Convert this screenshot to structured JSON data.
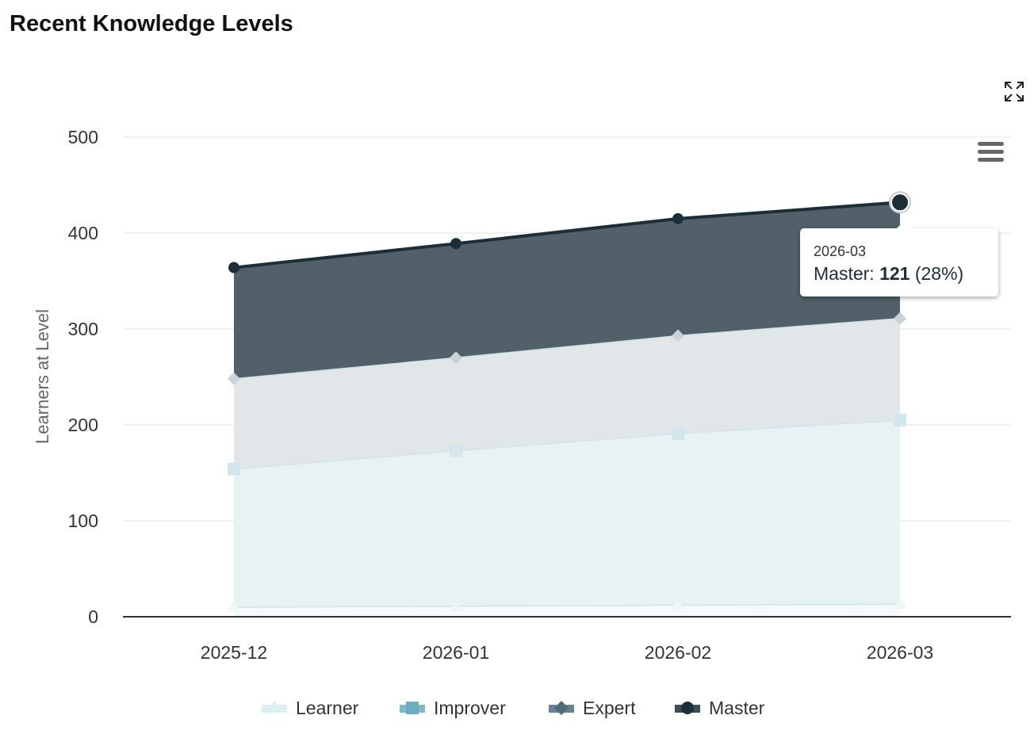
{
  "title": "Recent Knowledge Levels",
  "chart_data": {
    "type": "area",
    "stacked": true,
    "title": "Recent Knowledge Levels",
    "xlabel": "",
    "ylabel": "Learners at Level",
    "ylim": [
      0,
      500
    ],
    "yticks": [
      0,
      100,
      200,
      300,
      400,
      500
    ],
    "categories": [
      "2025-12",
      "2026-01",
      "2026-02",
      "2026-03"
    ],
    "series": [
      {
        "name": "Learner",
        "values": [
          10,
          11,
          12,
          13
        ],
        "color": "#dceff1",
        "fill": "#f5fbfc",
        "marker": "triangle"
      },
      {
        "name": "Improver",
        "values": [
          144,
          162,
          179,
          192
        ],
        "color": "#6aaebf",
        "fill": "#e8f1f4",
        "marker": "square"
      },
      {
        "name": "Expert",
        "values": [
          94,
          97,
          102,
          106
        ],
        "color": "#4d6b7a",
        "fill": "#e1e6e9",
        "marker": "diamond"
      },
      {
        "name": "Master",
        "values": [
          116,
          119,
          122,
          121
        ],
        "color": "#1c2e38",
        "fill": "#526069",
        "marker": "circle"
      }
    ],
    "grid": true,
    "legend": "bottom-center",
    "tooltip": {
      "category": "2026-03",
      "series": "Master",
      "value": "121",
      "percent": "(28%)"
    }
  },
  "icons": {
    "fullscreen": "expand-icon",
    "menu": "hamburger-menu-icon"
  }
}
